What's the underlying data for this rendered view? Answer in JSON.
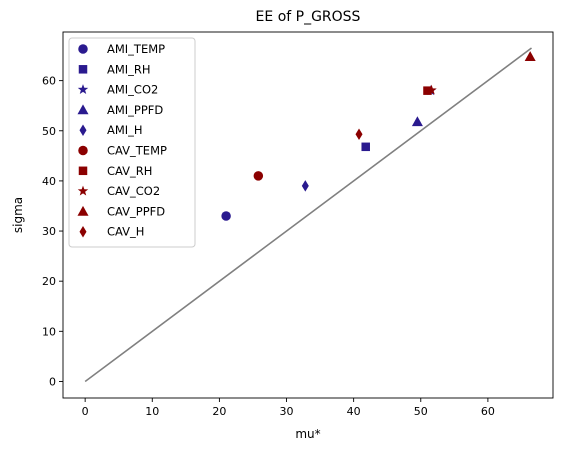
{
  "chart_data": {
    "type": "scatter",
    "title": "EE of P_GROSS",
    "xlabel": "mu*",
    "ylabel": "sigma",
    "xlim": [
      -3.3,
      69.7
    ],
    "ylim": [
      -3.3,
      69.7
    ],
    "xticks": [
      0,
      10,
      20,
      30,
      40,
      50,
      60
    ],
    "yticks": [
      0,
      10,
      20,
      30,
      40,
      50,
      60
    ],
    "grid": false,
    "legend_position": "top-left",
    "reference_line": {
      "from": [
        0,
        0
      ],
      "to": [
        66.5,
        66.5
      ],
      "color": "#808080"
    },
    "series": [
      {
        "name": "AMI_TEMP",
        "marker": "circle",
        "color": "#2a1a8f",
        "points": [
          [
            21.0,
            33.0
          ]
        ]
      },
      {
        "name": "AMI_RH",
        "marker": "square",
        "color": "#2a1a8f",
        "points": [
          [
            41.8,
            46.8
          ]
        ]
      },
      {
        "name": "AMI_CO2",
        "marker": "star",
        "color": "#2a1a8f",
        "points": [
          [
            51.5,
            58.0
          ]
        ]
      },
      {
        "name": "AMI_PPFD",
        "marker": "triangle",
        "color": "#2a1a8f",
        "points": [
          [
            49.5,
            51.8
          ]
        ]
      },
      {
        "name": "AMI_H",
        "marker": "diamond",
        "color": "#2a1a8f",
        "points": [
          [
            32.8,
            39.0
          ]
        ]
      },
      {
        "name": "CAV_TEMP",
        "marker": "circle",
        "color": "#8b0000",
        "points": [
          [
            25.8,
            41.0
          ]
        ]
      },
      {
        "name": "CAV_RH",
        "marker": "square",
        "color": "#8b0000",
        "points": [
          [
            51.0,
            58.0
          ]
        ]
      },
      {
        "name": "CAV_CO2",
        "marker": "star",
        "color": "#8b0000",
        "points": [
          [
            51.6,
            58.1
          ]
        ]
      },
      {
        "name": "CAV_PPFD",
        "marker": "triangle",
        "color": "#8b0000",
        "points": [
          [
            66.3,
            64.8
          ]
        ]
      },
      {
        "name": "CAV_H",
        "marker": "diamond",
        "color": "#8b0000",
        "points": [
          [
            40.8,
            49.3
          ]
        ]
      }
    ]
  }
}
